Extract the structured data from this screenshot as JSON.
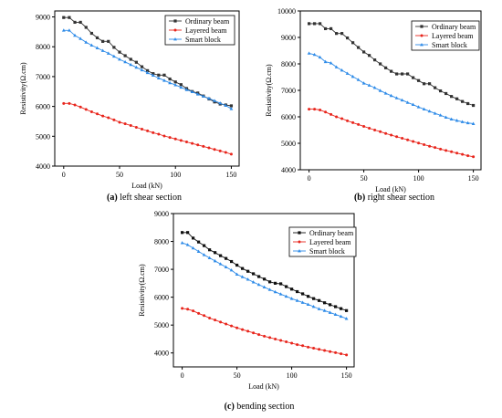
{
  "chart_data": [
    {
      "type": "line",
      "caption_letter": "(a)",
      "caption_text": " left shear section",
      "xlabel": "Load (kN)",
      "ylabel": "Resistivity(Ω.cm)",
      "xlim": [
        -8,
        157
      ],
      "ylim": [
        4000,
        9200
      ],
      "xticks": [
        0,
        50,
        100,
        150
      ],
      "yticks": [
        4000,
        5000,
        6000,
        7000,
        8000,
        9000
      ],
      "legend_position": "top-right",
      "x": [
        0,
        5,
        10,
        15,
        20,
        25,
        30,
        35,
        40,
        45,
        50,
        55,
        60,
        65,
        70,
        75,
        80,
        85,
        90,
        95,
        100,
        105,
        110,
        115,
        120,
        125,
        130,
        135,
        140,
        145,
        150
      ],
      "series": [
        {
          "name": "Ordinary beam",
          "color": "#333333",
          "marker": "square",
          "values": [
            8980,
            8980,
            8820,
            8820,
            8650,
            8450,
            8300,
            8180,
            8180,
            7980,
            7820,
            7700,
            7580,
            7480,
            7330,
            7200,
            7100,
            7050,
            7050,
            6920,
            6820,
            6730,
            6600,
            6500,
            6450,
            6350,
            6250,
            6150,
            6080,
            6050,
            6020
          ]
        },
        {
          "name": "Layered beam",
          "color": "#e8251c",
          "marker": "circle",
          "values": [
            6100,
            6100,
            6050,
            5980,
            5900,
            5820,
            5750,
            5680,
            5620,
            5550,
            5470,
            5420,
            5360,
            5300,
            5240,
            5180,
            5120,
            5070,
            5010,
            4960,
            4910,
            4860,
            4810,
            4760,
            4710,
            4660,
            4610,
            4560,
            4510,
            4460,
            4400
          ]
        },
        {
          "name": "Smart block",
          "color": "#2e8be8",
          "marker": "triangle",
          "values": [
            8550,
            8550,
            8380,
            8270,
            8150,
            8050,
            7960,
            7870,
            7780,
            7680,
            7580,
            7490,
            7400,
            7310,
            7220,
            7130,
            7040,
            6950,
            6870,
            6790,
            6720,
            6640,
            6560,
            6490,
            6410,
            6340,
            6270,
            6190,
            6110,
            6030,
            5920
          ]
        }
      ]
    },
    {
      "type": "line",
      "caption_letter": "(b)",
      "caption_text": " right shear section",
      "xlabel": "Load (kN)",
      "ylabel": "Resistivity(Ω.cm)",
      "xlim": [
        -8,
        157
      ],
      "ylim": [
        4000,
        10000
      ],
      "xticks": [
        0,
        50,
        100,
        150
      ],
      "yticks": [
        4000,
        5000,
        6000,
        7000,
        8000,
        9000,
        10000
      ],
      "legend_position": "top-right",
      "x": [
        0,
        5,
        10,
        15,
        20,
        25,
        30,
        35,
        40,
        45,
        50,
        55,
        60,
        65,
        70,
        75,
        80,
        85,
        90,
        95,
        100,
        105,
        110,
        115,
        120,
        125,
        130,
        135,
        140,
        145,
        150
      ],
      "series": [
        {
          "name": "Ordinary beam",
          "color": "#333333",
          "marker": "square",
          "values": [
            9520,
            9520,
            9520,
            9330,
            9330,
            9150,
            9150,
            8980,
            8800,
            8620,
            8450,
            8320,
            8150,
            8000,
            7850,
            7720,
            7620,
            7620,
            7620,
            7480,
            7370,
            7250,
            7250,
            7100,
            6980,
            6880,
            6770,
            6680,
            6580,
            6500,
            6430
          ]
        },
        {
          "name": "Layered beam",
          "color": "#e8251c",
          "marker": "circle",
          "values": [
            6290,
            6290,
            6260,
            6180,
            6090,
            6000,
            5930,
            5850,
            5780,
            5710,
            5640,
            5570,
            5500,
            5440,
            5370,
            5310,
            5250,
            5190,
            5130,
            5070,
            5010,
            4950,
            4890,
            4840,
            4780,
            4730,
            4680,
            4630,
            4580,
            4530,
            4490
          ]
        },
        {
          "name": "Smart block",
          "color": "#2e8be8",
          "marker": "triangle",
          "values": [
            8400,
            8350,
            8250,
            8080,
            8030,
            7880,
            7760,
            7640,
            7520,
            7400,
            7270,
            7190,
            7100,
            6990,
            6890,
            6800,
            6710,
            6630,
            6540,
            6460,
            6370,
            6290,
            6210,
            6130,
            6060,
            5980,
            5910,
            5860,
            5810,
            5770,
            5740
          ]
        }
      ]
    },
    {
      "type": "line",
      "caption_letter": "(c)",
      "caption_text": " bending section",
      "xlabel": "Load (kN)",
      "ylabel": "Resistivity(Ω.cm)",
      "xlim": [
        -8,
        157
      ],
      "ylim": [
        3500,
        9000
      ],
      "xticks": [
        0,
        50,
        100,
        150
      ],
      "yticks": [
        4000,
        5000,
        6000,
        7000,
        8000,
        9000
      ],
      "legend_position": "top-right",
      "x": [
        0,
        5,
        10,
        15,
        20,
        25,
        30,
        35,
        40,
        45,
        50,
        55,
        60,
        65,
        70,
        75,
        80,
        85,
        90,
        95,
        100,
        105,
        110,
        115,
        120,
        125,
        130,
        135,
        140,
        145,
        150
      ],
      "series": [
        {
          "name": "Ordinary beam",
          "color": "#111111",
          "marker": "square",
          "values": [
            8320,
            8320,
            8120,
            7980,
            7850,
            7700,
            7600,
            7490,
            7390,
            7280,
            7150,
            7030,
            6930,
            6840,
            6740,
            6650,
            6550,
            6500,
            6480,
            6380,
            6290,
            6200,
            6120,
            6030,
            5950,
            5880,
            5800,
            5730,
            5660,
            5590,
            5520
          ]
        },
        {
          "name": "Layered beam",
          "color": "#e8251c",
          "marker": "circle",
          "values": [
            5600,
            5570,
            5510,
            5420,
            5340,
            5250,
            5180,
            5110,
            5040,
            4970,
            4900,
            4840,
            4780,
            4720,
            4660,
            4600,
            4550,
            4500,
            4450,
            4400,
            4350,
            4300,
            4260,
            4210,
            4170,
            4130,
            4090,
            4050,
            4010,
            3970,
            3930
          ]
        },
        {
          "name": "Smart block",
          "color": "#2e8be8",
          "marker": "triangle",
          "values": [
            7950,
            7880,
            7760,
            7640,
            7520,
            7410,
            7300,
            7190,
            7080,
            6970,
            6820,
            6730,
            6640,
            6540,
            6450,
            6360,
            6270,
            6190,
            6110,
            6030,
            5950,
            5880,
            5810,
            5740,
            5660,
            5580,
            5520,
            5450,
            5380,
            5310,
            5230
          ]
        }
      ]
    }
  ]
}
